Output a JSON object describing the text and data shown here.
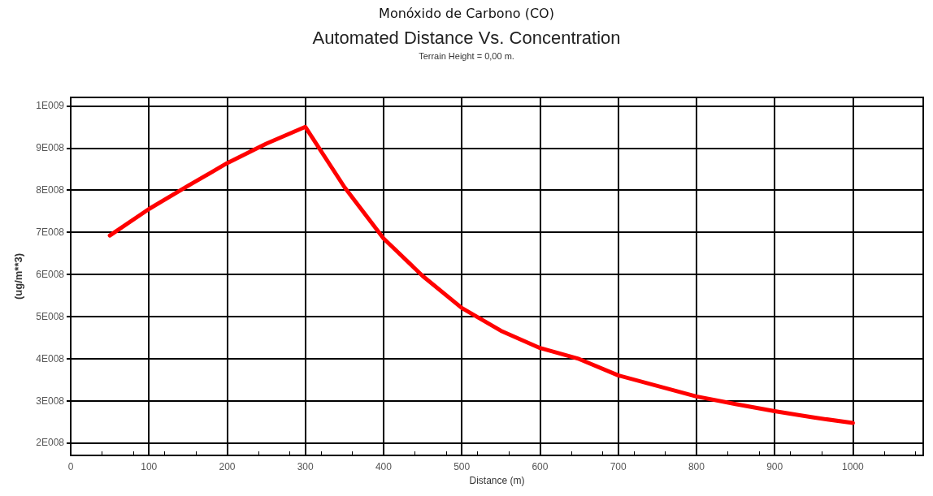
{
  "chart_data": {
    "type": "line",
    "title": "Automated Distance Vs. Concentration",
    "subtitle": "Terrain Height = 0,00 m.",
    "annotations": [
      "Monóxido de Carbono (CO)"
    ],
    "xlabel": "Distance (m)",
    "ylabel": "(ug/m**3)",
    "x": [
      50,
      100,
      150,
      200,
      250,
      300,
      350,
      400,
      450,
      500,
      550,
      600,
      650,
      700,
      800,
      850,
      900,
      950,
      1000
    ],
    "series": [
      {
        "color": "#ff0000",
        "values": [
          692000000,
          755000000,
          810000000,
          864000000,
          910000000,
          950000000,
          807000000,
          685000000,
          596000000,
          520000000,
          466000000,
          425000000,
          399000000,
          360000000,
          310000000,
          292000000,
          275000000,
          260000000,
          247000000
        ]
      }
    ],
    "xlim": [
      0,
      1090
    ],
    "xticks": [
      0,
      100,
      200,
      300,
      400,
      500,
      600,
      700,
      800,
      900,
      1000
    ],
    "ylim": [
      170000000,
      1020000000
    ],
    "yticks": [
      {
        "value": 200000000,
        "label": "2E008"
      },
      {
        "value": 300000000,
        "label": "3E008"
      },
      {
        "value": 400000000,
        "label": "4E008"
      },
      {
        "value": 500000000,
        "label": "5E008"
      },
      {
        "value": 600000000,
        "label": "6E008"
      },
      {
        "value": 700000000,
        "label": "7E008"
      },
      {
        "value": 800000000,
        "label": "8E008"
      },
      {
        "value": 900000000,
        "label": "9E008"
      },
      {
        "value": 1000000000,
        "label": "1E009"
      }
    ],
    "grid": true,
    "marker": "none",
    "line_style": "solid"
  }
}
